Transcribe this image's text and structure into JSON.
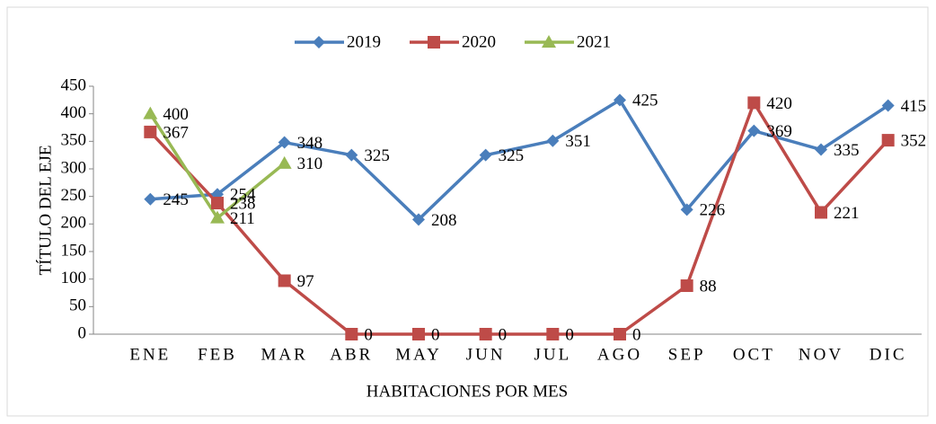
{
  "chart_data": {
    "type": "line",
    "x_label": "HABITACIONES POR MES",
    "y_label": "TÍTULO DEL EJE",
    "categories": [
      "ENE",
      "FEB",
      "MAR",
      "ABR",
      "MAY",
      "JUN",
      "JUL",
      "AGO",
      "SEP",
      "OCT",
      "NOV",
      "DIC"
    ],
    "series": [
      {
        "name": "2019",
        "color": "#4a7ebb",
        "marker": "diamond",
        "values": [
          245,
          254,
          348,
          325,
          208,
          325,
          351,
          425,
          226,
          369,
          335,
          415
        ]
      },
      {
        "name": "2020",
        "color": "#be4b48",
        "marker": "square",
        "values": [
          367,
          238,
          97,
          0,
          0,
          0,
          0,
          0,
          88,
          420,
          221,
          352
        ]
      },
      {
        "name": "2021",
        "color": "#98b954",
        "marker": "triangle",
        "values": [
          400,
          211,
          310,
          null,
          null,
          null,
          null,
          null,
          null,
          null,
          null,
          null
        ]
      }
    ],
    "ylim": [
      0,
      450
    ],
    "yticks": [
      0,
      50,
      100,
      150,
      200,
      250,
      300,
      350,
      400,
      450
    ],
    "grid": false,
    "legend": "top"
  }
}
